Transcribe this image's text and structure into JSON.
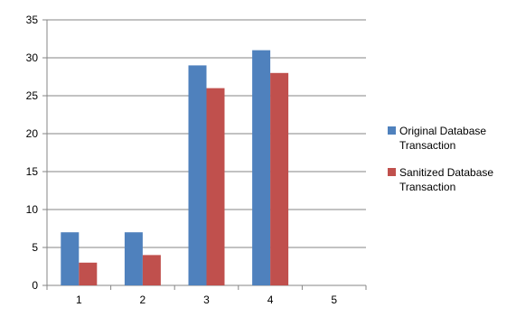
{
  "chart_data": {
    "type": "bar",
    "title": "",
    "xlabel": "",
    "ylabel": "",
    "categories": [
      "1",
      "2",
      "3",
      "4",
      "5"
    ],
    "ylim": [
      0,
      35
    ],
    "yticks": [
      0,
      5,
      10,
      15,
      20,
      25,
      30,
      35
    ],
    "grid": true,
    "legend_position": "right",
    "series": [
      {
        "name": "Original Database Transaction",
        "name_lines": [
          "Original Database",
          "Transaction"
        ],
        "color": "#4F81BD",
        "values": [
          7,
          7,
          29,
          31,
          null
        ]
      },
      {
        "name": "Sanitized Database Transaction",
        "name_lines": [
          "Sanitized Database",
          "Transaction"
        ],
        "color": "#C0504D",
        "values": [
          3,
          4,
          26,
          28,
          null
        ]
      }
    ]
  }
}
